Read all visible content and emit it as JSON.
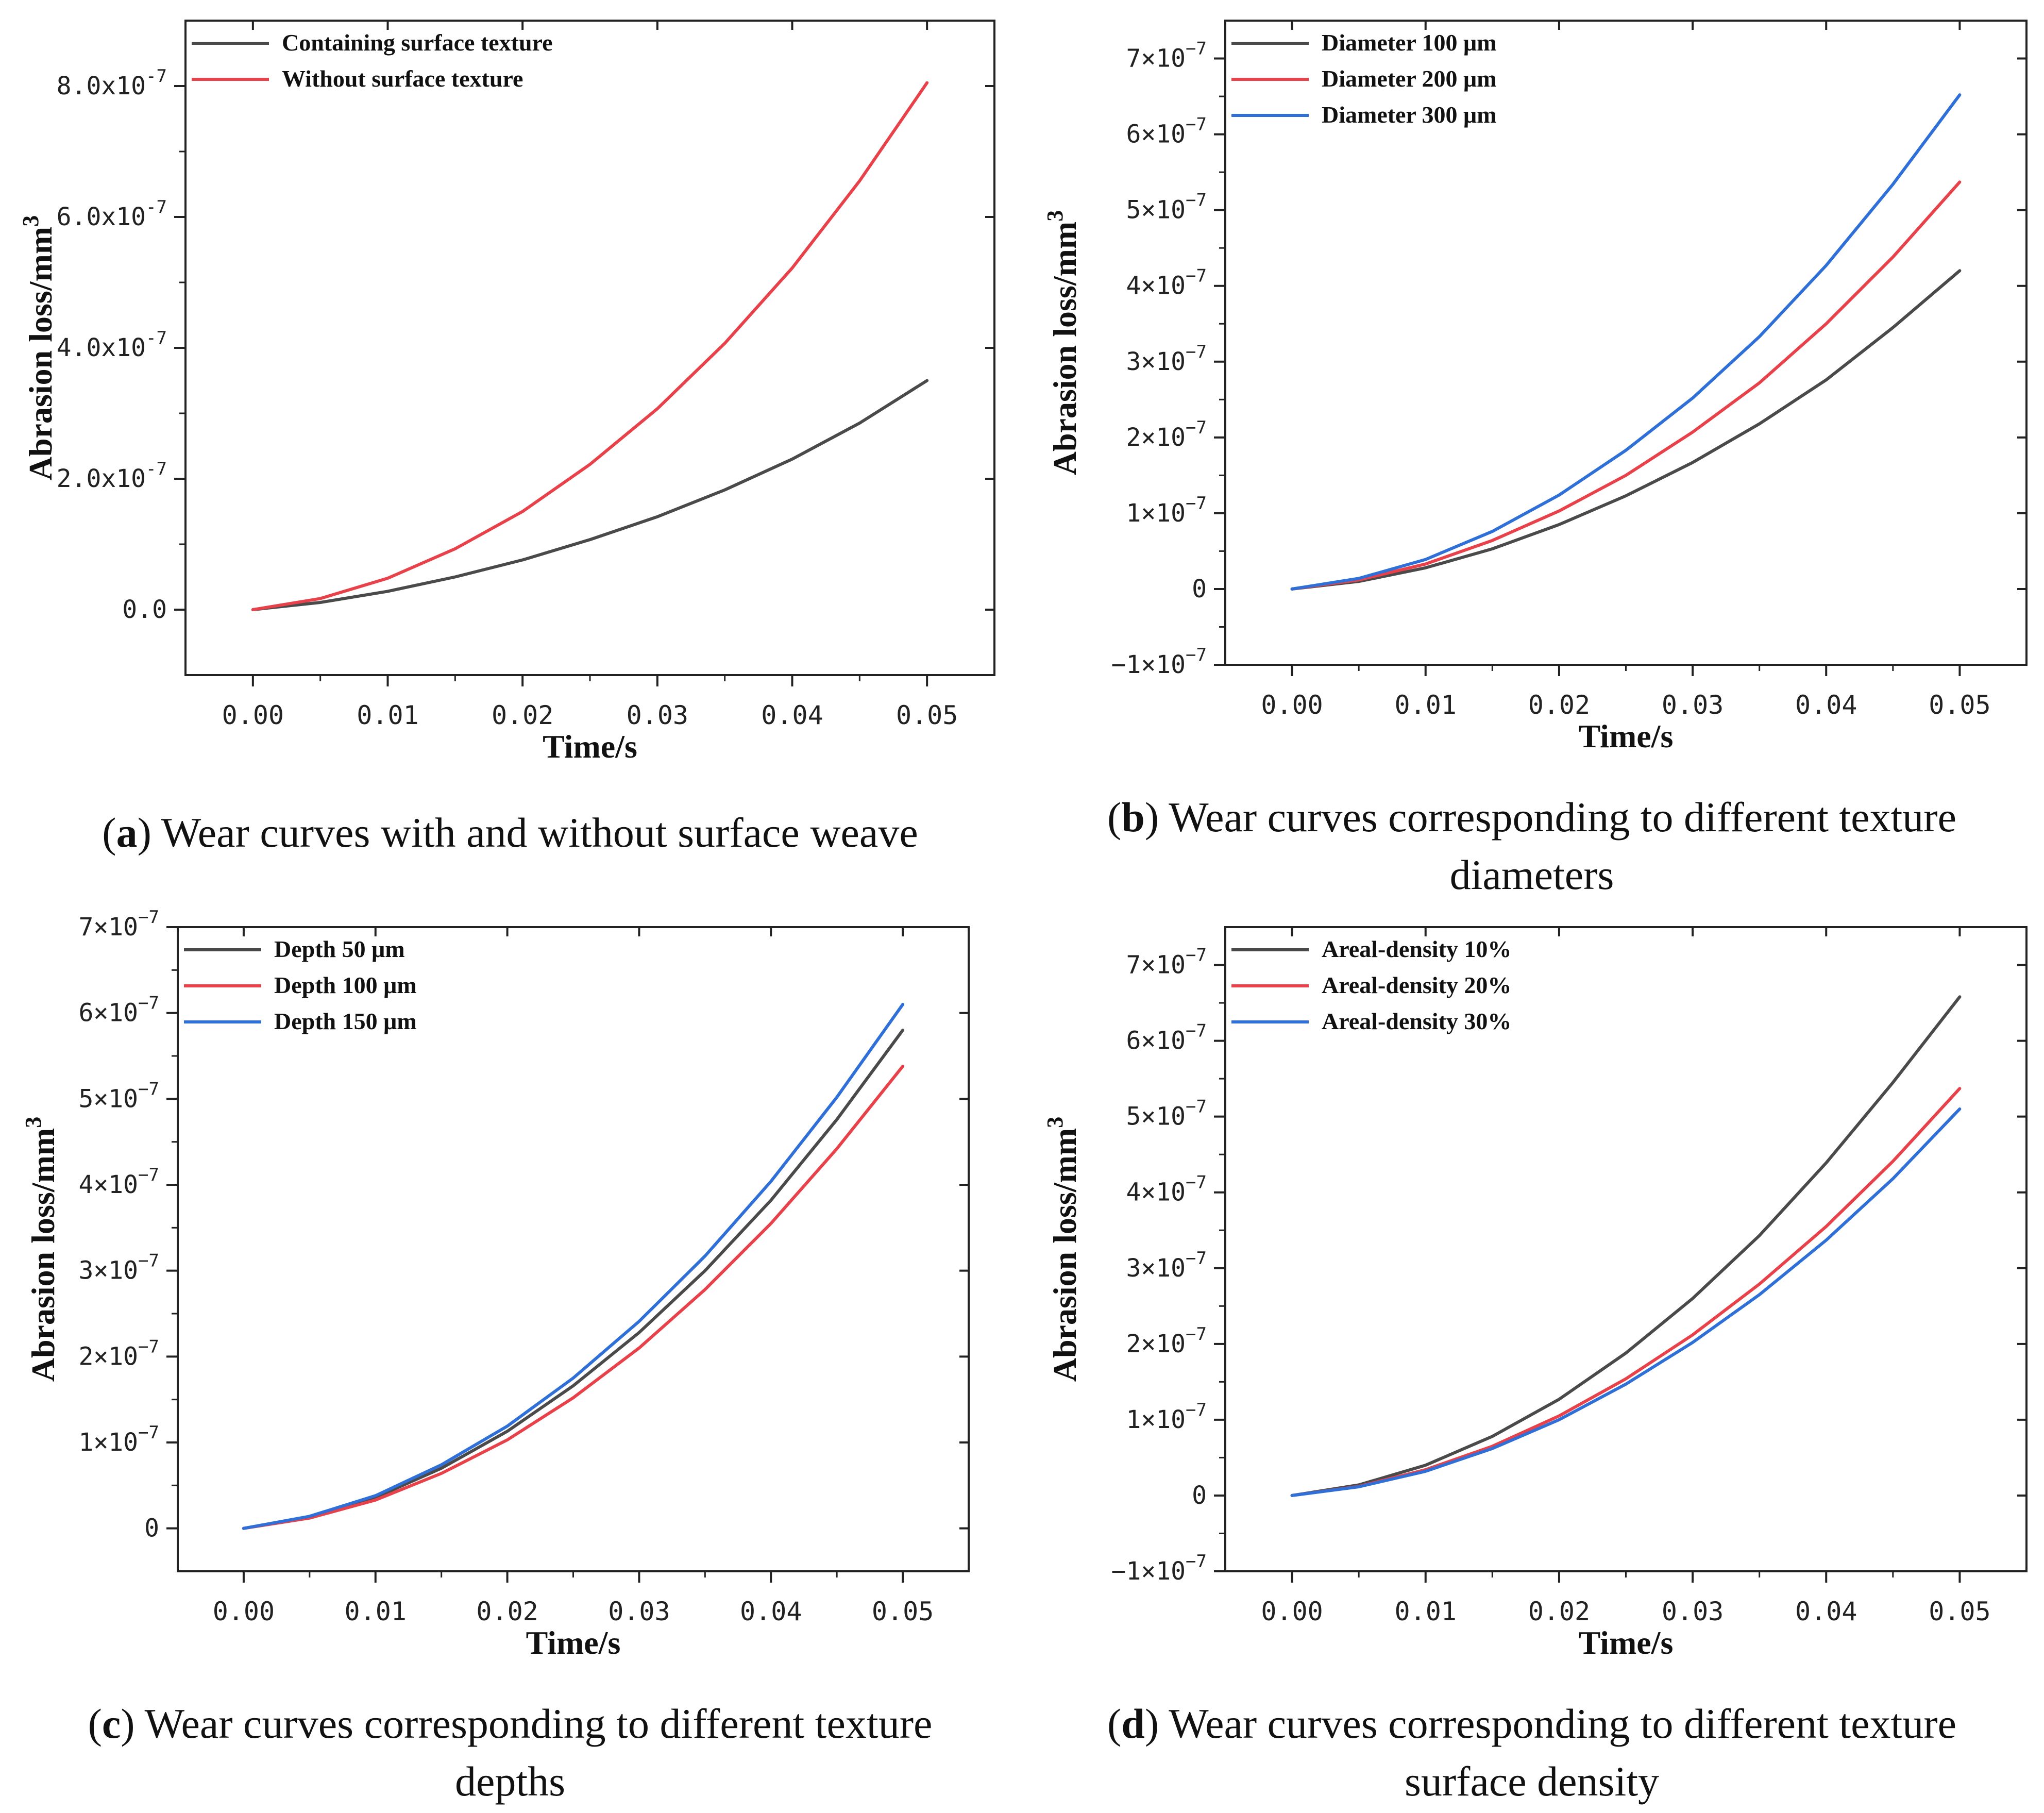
{
  "chart_data": [
    {
      "id": "a",
      "type": "line",
      "xlabel": "Time/s",
      "ylabel_main": "Abrasion loss/mm",
      "ylabel_sup": "3",
      "xlim": [
        -0.005,
        0.055
      ],
      "ylim": [
        -1e-07,
        9e-07
      ],
      "x_ticks": [
        0,
        0.01,
        0.02,
        0.03,
        0.04,
        0.05
      ],
      "x_tick_labels": [
        "0.00",
        "0.01",
        "0.02",
        "0.03",
        "0.04",
        "0.05"
      ],
      "y_ticks": [
        0,
        2e-07,
        4e-07,
        6e-07,
        8e-07
      ],
      "y_tick_labels": [
        {
          "base": "0.0",
          "exp": ""
        },
        {
          "base": "2.0x10",
          "exp": "-7"
        },
        {
          "base": "4.0x10",
          "exp": "-7"
        },
        {
          "base": "6.0x10",
          "exp": "-7"
        },
        {
          "base": "8.0x10",
          "exp": "-7"
        }
      ],
      "legend_position": "top-left",
      "grid": false,
      "x": [
        0,
        0.005,
        0.01,
        0.015,
        0.02,
        0.025,
        0.03,
        0.035,
        0.04,
        0.045,
        0.05
      ],
      "series": [
        {
          "name": "Containing surface texture",
          "color": "#4a4a4a",
          "values": [
            0,
            1.1e-08,
            2.8e-08,
            5e-08,
            7.6e-08,
            1.07e-07,
            1.42e-07,
            1.83e-07,
            2.3e-07,
            2.85e-07,
            3.5e-07
          ]
        },
        {
          "name": "Without surface texture",
          "color": "#e8414a",
          "values": [
            0,
            1.7e-08,
            4.8e-08,
            9.3e-08,
            1.5e-07,
            2.22e-07,
            3.07e-07,
            4.07e-07,
            5.22e-07,
            6.55e-07,
            8.05e-07
          ]
        }
      ]
    },
    {
      "id": "b",
      "type": "line",
      "xlabel": "Time/s",
      "ylabel_main": "Abrasion loss/mm",
      "ylabel_sup": "3",
      "xlim": [
        -0.005,
        0.055
      ],
      "ylim": [
        -1e-07,
        7.5e-07
      ],
      "x_ticks": [
        0,
        0.01,
        0.02,
        0.03,
        0.04,
        0.05
      ],
      "x_tick_labels": [
        "0.00",
        "0.01",
        "0.02",
        "0.03",
        "0.04",
        "0.05"
      ],
      "y_ticks": [
        -1e-07,
        0,
        1e-07,
        2e-07,
        3e-07,
        4e-07,
        5e-07,
        6e-07,
        7e-07
      ],
      "y_tick_labels": [
        {
          "base": "−1×10",
          "exp": "−7"
        },
        {
          "base": "0",
          "exp": ""
        },
        {
          "base": "1×10",
          "exp": "−7"
        },
        {
          "base": "2×10",
          "exp": "−7"
        },
        {
          "base": "3×10",
          "exp": "−7"
        },
        {
          "base": "4×10",
          "exp": "−7"
        },
        {
          "base": "5×10",
          "exp": "−7"
        },
        {
          "base": "6×10",
          "exp": "−7"
        },
        {
          "base": "7×10",
          "exp": "−7"
        }
      ],
      "legend_position": "top-left",
      "grid": false,
      "x": [
        0,
        0.005,
        0.01,
        0.015,
        0.02,
        0.025,
        0.03,
        0.035,
        0.04,
        0.045,
        0.05
      ],
      "series": [
        {
          "name": "Diameter 100 μm",
          "color": "#4a4a4a",
          "values": [
            0,
            1e-08,
            2.8e-08,
            5.3e-08,
            8.5e-08,
            1.23e-07,
            1.67e-07,
            2.18e-07,
            2.76e-07,
            3.45e-07,
            4.2e-07
          ]
        },
        {
          "name": "Diameter 200 μm",
          "color": "#e8414a",
          "values": [
            0,
            1.2e-08,
            3.3e-08,
            6.4e-08,
            1.03e-07,
            1.5e-07,
            2.07e-07,
            2.72e-07,
            3.5e-07,
            4.38e-07,
            5.37e-07
          ]
        },
        {
          "name": "Diameter 300 μm",
          "color": "#2e6fd8",
          "values": [
            0,
            1.4e-08,
            3.9e-08,
            7.6e-08,
            1.24e-07,
            1.83e-07,
            2.52e-07,
            3.33e-07,
            4.27e-07,
            5.34e-07,
            6.52e-07
          ]
        }
      ]
    },
    {
      "id": "c",
      "type": "line",
      "xlabel": "Time/s",
      "ylabel_main": "Abrasion loss/mm",
      "ylabel_sup": "3",
      "xlim": [
        -0.005,
        0.055
      ],
      "ylim": [
        -5e-08,
        7e-07
      ],
      "x_ticks": [
        0,
        0.01,
        0.02,
        0.03,
        0.04,
        0.05
      ],
      "x_tick_labels": [
        "0.00",
        "0.01",
        "0.02",
        "0.03",
        "0.04",
        "0.05"
      ],
      "y_ticks": [
        0,
        1e-07,
        2e-07,
        3e-07,
        4e-07,
        5e-07,
        6e-07,
        7e-07
      ],
      "y_tick_labels": [
        {
          "base": "0",
          "exp": ""
        },
        {
          "base": "1×10",
          "exp": "−7"
        },
        {
          "base": "2×10",
          "exp": "−7"
        },
        {
          "base": "3×10",
          "exp": "−7"
        },
        {
          "base": "4×10",
          "exp": "−7"
        },
        {
          "base": "5×10",
          "exp": "−7"
        },
        {
          "base": "6×10",
          "exp": "−7"
        },
        {
          "base": "7×10",
          "exp": "−7"
        }
      ],
      "legend_position": "top-left",
      "grid": false,
      "x": [
        0,
        0.005,
        0.01,
        0.015,
        0.02,
        0.025,
        0.03,
        0.035,
        0.04,
        0.045,
        0.05
      ],
      "series": [
        {
          "name": "Depth 50 μm",
          "color": "#4a4a4a",
          "values": [
            0,
            1.3e-08,
            3.6e-08,
            7e-08,
            1.13e-07,
            1.66e-07,
            2.28e-07,
            3e-07,
            3.82e-07,
            4.76e-07,
            5.8e-07
          ]
        },
        {
          "name": "Depth 100 μm",
          "color": "#e8414a",
          "values": [
            0,
            1.2e-08,
            3.3e-08,
            6.4e-08,
            1.03e-07,
            1.52e-07,
            2.1e-07,
            2.78e-07,
            3.55e-07,
            4.42e-07,
            5.38e-07
          ]
        },
        {
          "name": "Depth 150 μm",
          "color": "#2e6fd8",
          "values": [
            0,
            1.4e-08,
            3.8e-08,
            7.4e-08,
            1.19e-07,
            1.75e-07,
            2.41e-07,
            3.17e-07,
            4.04e-07,
            5.02e-07,
            6.1e-07
          ]
        }
      ]
    },
    {
      "id": "d",
      "type": "line",
      "xlabel": "Time/s",
      "ylabel_main": "Abrasion loss/mm",
      "ylabel_sup": "3",
      "xlim": [
        -0.005,
        0.055
      ],
      "ylim": [
        -1e-07,
        7.5e-07
      ],
      "x_ticks": [
        0,
        0.01,
        0.02,
        0.03,
        0.04,
        0.05
      ],
      "x_tick_labels": [
        "0.00",
        "0.01",
        "0.02",
        "0.03",
        "0.04",
        "0.05"
      ],
      "y_ticks": [
        -1e-07,
        0,
        1e-07,
        2e-07,
        3e-07,
        4e-07,
        5e-07,
        6e-07,
        7e-07
      ],
      "y_tick_labels": [
        {
          "base": "−1×10",
          "exp": "−7"
        },
        {
          "base": "0",
          "exp": ""
        },
        {
          "base": "1×10",
          "exp": "−7"
        },
        {
          "base": "2×10",
          "exp": "−7"
        },
        {
          "base": "3×10",
          "exp": "−7"
        },
        {
          "base": "4×10",
          "exp": "−7"
        },
        {
          "base": "5×10",
          "exp": "−7"
        },
        {
          "base": "6×10",
          "exp": "−7"
        },
        {
          "base": "7×10",
          "exp": "−7"
        }
      ],
      "legend_position": "top-left",
      "grid": false,
      "x": [
        0,
        0.005,
        0.01,
        0.015,
        0.02,
        0.025,
        0.03,
        0.035,
        0.04,
        0.045,
        0.05
      ],
      "series": [
        {
          "name": "Areal-density 10%",
          "color": "#4a4a4a",
          "values": [
            0,
            1.4e-08,
            4e-08,
            7.8e-08,
            1.27e-07,
            1.88e-07,
            2.6e-07,
            3.43e-07,
            4.39e-07,
            5.45e-07,
            6.58e-07
          ]
        },
        {
          "name": "Areal-density 20%",
          "color": "#e8414a",
          "values": [
            0,
            1.2e-08,
            3.4e-08,
            6.5e-08,
            1.05e-07,
            1.54e-07,
            2.12e-07,
            2.79e-07,
            3.55e-07,
            4.41e-07,
            5.37e-07
          ]
        },
        {
          "name": "Areal-density 30%",
          "color": "#2e6fd8",
          "values": [
            0,
            1.15e-08,
            3.2e-08,
            6.2e-08,
            1e-07,
            1.47e-07,
            2.02e-07,
            2.65e-07,
            3.37e-07,
            4.18e-07,
            5.1e-07
          ]
        }
      ]
    }
  ],
  "captions": {
    "a": {
      "letter": "a",
      "line1": " Wear curves with and without surface weave",
      "line2": ""
    },
    "b": {
      "letter": "b",
      "line1": " Wear curves corresponding to different texture",
      "line2": "diameters"
    },
    "c": {
      "letter": "c",
      "line1": " Wear curves corresponding to different texture",
      "line2": "depths"
    },
    "d": {
      "letter": "d",
      "line1": " Wear curves corresponding to different texture",
      "line2": "surface density"
    }
  }
}
